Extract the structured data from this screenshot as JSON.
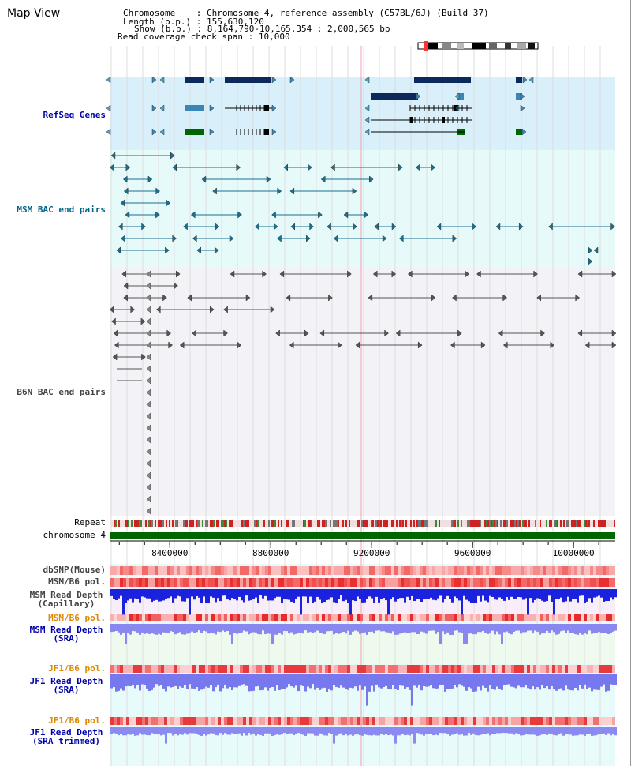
{
  "title": "Map View",
  "info": {
    "chromosome_key": "Chromosome",
    "chromosome_value": "Chromosome 4, reference assembly (C57BL/6J) (Build 37)",
    "length_key": "Length (b.p.)",
    "length_value": "155,630,120",
    "show_key": "Show (b.p.)",
    "show_value": "8,164,790-10,165,354 : 2,000,565 bp",
    "coverage_key": "Read coverage check span",
    "coverage_value": "10,000"
  },
  "tracks": {
    "refseq": "RefSeq Genes",
    "msm_bac": "MSM BAC end pairs",
    "b6n_bac": "B6N BAC end pairs",
    "repeat": "Repeat",
    "chromosome": "chromosome 4",
    "dbsnp": "dbSNP(Mouse)",
    "msm_pol_1": "MSM/B6 pol.",
    "msm_depth_cap_1": "MSM Read Depth",
    "msm_depth_cap_2": "(Capillary)",
    "msm_pol_2": "MSM/B6 pol.",
    "msm_depth_sra_1": "MSM Read Depth",
    "msm_depth_sra_2": "(SRA)",
    "jf1_pol_1": "JF1/B6 pol.",
    "jf1_depth_sra_1": "JF1 Read Depth",
    "jf1_depth_sra_2": "(SRA)",
    "jf1_pol_2": "JF1/B6 pol.",
    "jf1_depth_trim_1": "JF1 Read Depth",
    "jf1_depth_trim_2": "(SRA trimmed)"
  },
  "ruler": {
    "ticks": [
      {
        "bp": 8400000,
        "label": "8400000"
      },
      {
        "bp": 8800000,
        "label": "8800000"
      },
      {
        "bp": 9200000,
        "label": "9200000"
      },
      {
        "bp": 9600000,
        "label": "9600000"
      },
      {
        "bp": 10000000,
        "label": "10000000"
      }
    ],
    "start_bp": 8164790,
    "end_bp": 10165354
  },
  "colors": {
    "refseq_bg": "#d9f0fa",
    "msm_bg": "#e6fafa",
    "b6n_bg": "#f2f2f7",
    "gene_dark": "#0a2a5e",
    "gene_mid": "#3a86b4",
    "gene_green": "#006600",
    "msm_bac": "#1a6e8e",
    "b6n_bac": "#555555",
    "chrom": "#006600",
    "refseq_label": "#0000aa",
    "msm_label": "#006688",
    "b6n_label": "#444444",
    "orange_label": "#dd8800",
    "blue_label": "#0000aa"
  },
  "icons": {
    "ideogram": "chromosome-ideogram-icon"
  }
}
